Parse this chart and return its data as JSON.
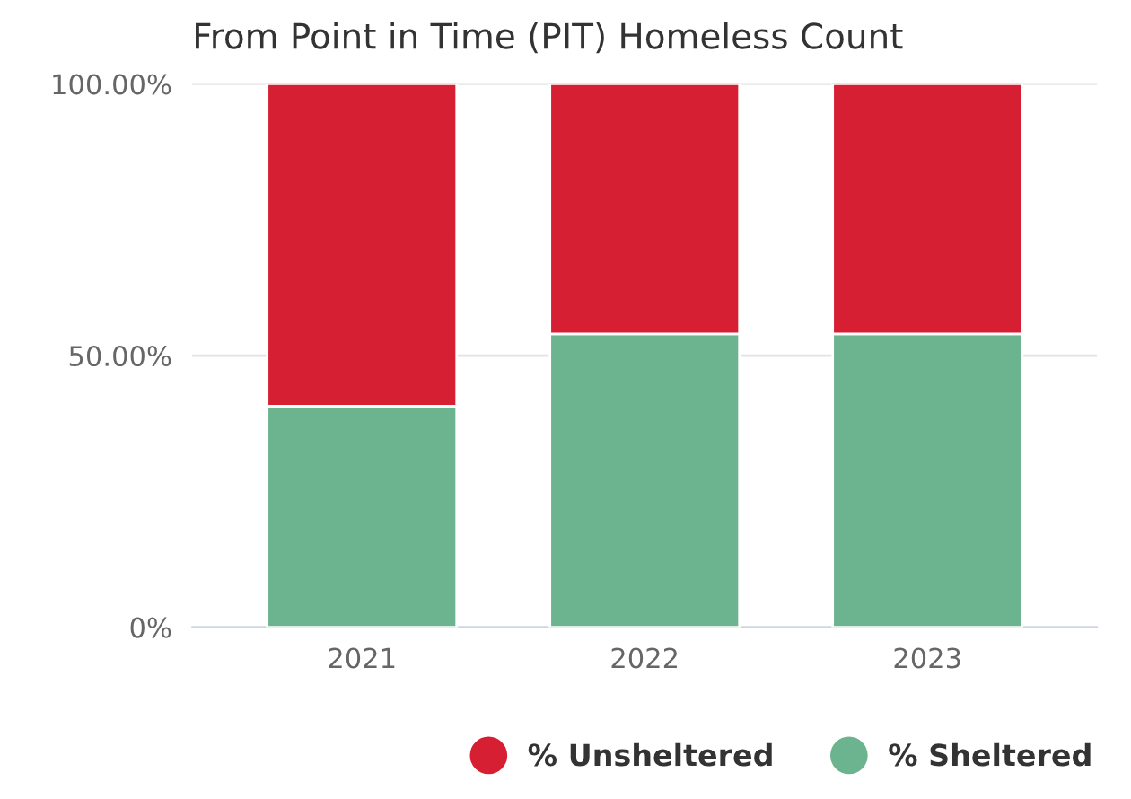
{
  "chart_data": {
    "type": "bar",
    "title": "From Point in Time (PIT) Homeless Count",
    "categories": [
      "2021",
      "2022",
      "2023"
    ],
    "stacked": true,
    "series": [
      {
        "name": "% Sheltered",
        "color": "#6cb48f",
        "values": [
          40.7,
          54.0,
          54.0
        ]
      },
      {
        "name": "% Unsheltered",
        "color": "#d61f33",
        "values": [
          59.3,
          46.0,
          46.0
        ]
      }
    ],
    "ylim": [
      0,
      100
    ],
    "yticks": [
      {
        "value": 0,
        "label": "0%"
      },
      {
        "value": 50,
        "label": "50.00%"
      },
      {
        "value": 100,
        "label": "100.00%"
      }
    ],
    "grid": "y",
    "legend": "bottom right"
  }
}
